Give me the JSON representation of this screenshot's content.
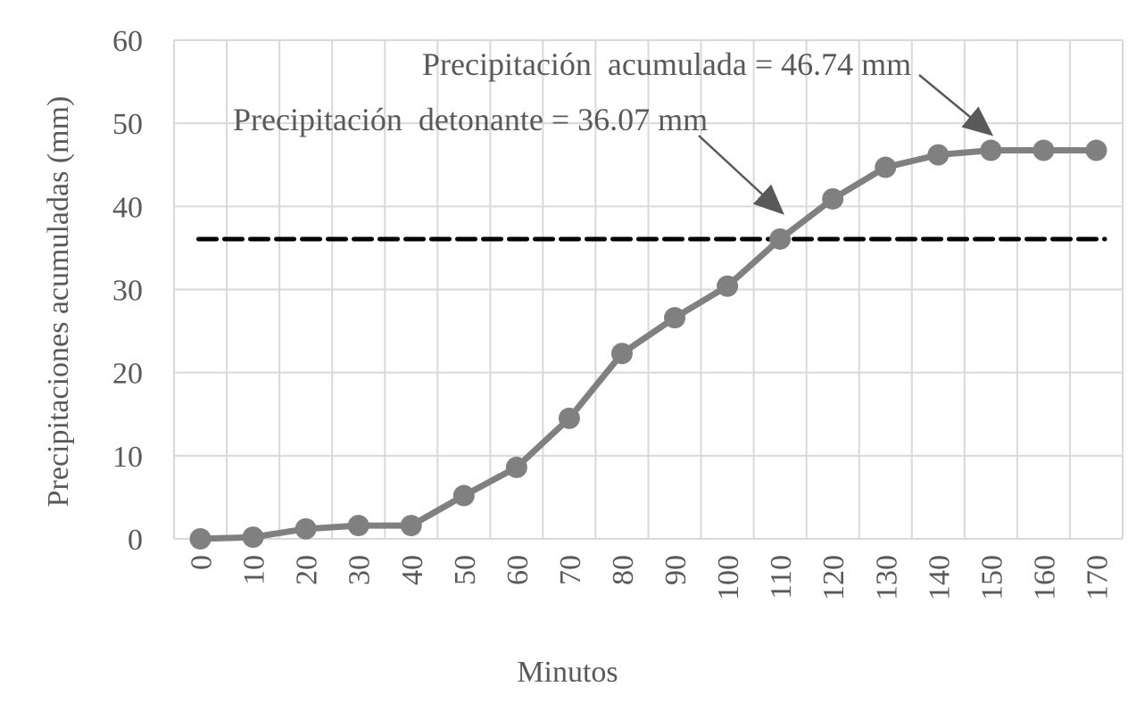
{
  "chart_data": {
    "type": "line",
    "title": "",
    "xlabel": "Minutos",
    "ylabel": "Precipitaciones acumuladas (mm)",
    "ylim": [
      0,
      60
    ],
    "yticks": [
      0,
      10,
      20,
      30,
      40,
      50,
      60
    ],
    "grid": true,
    "legend": null,
    "categories": [
      "0",
      "10",
      "20",
      "30",
      "40",
      "50",
      "60",
      "70",
      "80",
      "90",
      "100",
      "110",
      "120",
      "130",
      "140",
      "150",
      "160",
      "170"
    ],
    "series": [
      {
        "name": "Precipitación acumulada",
        "color": "#808080",
        "marker": "circle",
        "values": [
          0,
          0.2,
          1.2,
          1.6,
          1.6,
          5.2,
          8.6,
          14.5,
          22.3,
          26.6,
          30.4,
          36.07,
          40.9,
          44.7,
          46.2,
          46.74,
          46.74,
          46.74
        ]
      }
    ],
    "reference_lines": [
      {
        "name": "Precipitación detonante",
        "value": 36.07,
        "style": "dashed",
        "color": "#000000"
      }
    ],
    "annotations": [
      {
        "text": "Precipitación  acumulada = 46.74 mm",
        "points_to_category": "150",
        "value": 46.74
      },
      {
        "text": "Precipitación  detonante = 36.07 mm",
        "points_to_category": "110",
        "value": 36.07
      }
    ]
  },
  "colors": {
    "series": "#808080",
    "grid": "#d9d9d9",
    "text": "#595959",
    "reference_line": "#000000",
    "arrow": "#595959"
  }
}
